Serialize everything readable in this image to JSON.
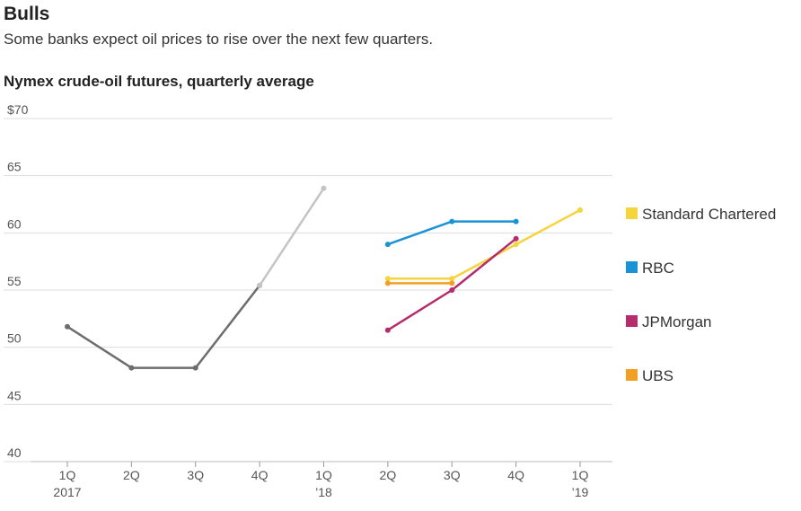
{
  "header": {
    "title": "Bulls",
    "subtitle": "Some banks expect oil prices to rise over the next few quarters."
  },
  "colors": {
    "actual": "#6d6d6d",
    "actual_recent": "#c4c4c4",
    "standard_chartered": "#f5d43c",
    "rbc": "#1a93d6",
    "jpmorgan": "#b52b6c",
    "ubs": "#f2a025",
    "gridline": "#dddddd"
  },
  "chart_data": {
    "type": "line",
    "title": "Nymex crude-oil futures, quarterly average",
    "ylim": [
      40,
      70
    ],
    "y_ticks": [
      {
        "value": 70,
        "label": "$70"
      },
      {
        "value": 65,
        "label": "65"
      },
      {
        "value": 60,
        "label": "60"
      },
      {
        "value": 55,
        "label": "55"
      },
      {
        "value": 50,
        "label": "50"
      },
      {
        "value": 45,
        "label": "45"
      },
      {
        "value": 40,
        "label": "40"
      }
    ],
    "categories": [
      "1Q 2017",
      "2Q",
      "3Q",
      "4Q",
      "1Q '18",
      "2Q",
      "3Q",
      "4Q",
      "1Q '19"
    ],
    "x_ticks": [
      {
        "line1": "1Q",
        "line2": "2017"
      },
      {
        "line1": "2Q",
        "line2": ""
      },
      {
        "line1": "3Q",
        "line2": ""
      },
      {
        "line1": "4Q",
        "line2": ""
      },
      {
        "line1": "1Q",
        "line2": "’18"
      },
      {
        "line1": "2Q",
        "line2": ""
      },
      {
        "line1": "3Q",
        "line2": ""
      },
      {
        "line1": "4Q",
        "line2": ""
      },
      {
        "line1": "1Q",
        "line2": "’19"
      }
    ],
    "grid": true,
    "legend_position": "right",
    "series": [
      {
        "key": "actual",
        "color_key": "actual",
        "x": [
          0,
          1,
          2,
          3
        ],
        "values": [
          51.8,
          48.2,
          48.2,
          55.4
        ]
      },
      {
        "key": "actual_recent",
        "color_key": "actual_recent",
        "x": [
          3,
          4
        ],
        "values": [
          55.4,
          63.9
        ]
      },
      {
        "key": "standard_chartered",
        "name": "Standard Chartered",
        "color_key": "standard_chartered",
        "x": [
          5,
          6,
          7,
          8
        ],
        "values": [
          56.0,
          56.0,
          59.0,
          62.0
        ]
      },
      {
        "key": "rbc",
        "name": "RBC",
        "color_key": "rbc",
        "x": [
          5,
          6,
          7
        ],
        "values": [
          59.0,
          61.0,
          61.0
        ]
      },
      {
        "key": "jpmorgan",
        "name": "JPMorgan",
        "color_key": "jpmorgan",
        "x": [
          5,
          6,
          7
        ],
        "values": [
          51.5,
          55.0,
          59.5
        ]
      },
      {
        "key": "ubs",
        "name": "UBS",
        "color_key": "ubs",
        "x": [
          5,
          6
        ],
        "values": [
          55.6,
          55.6
        ]
      }
    ],
    "legend": [
      {
        "label": "Standard Chartered",
        "color_key": "standard_chartered"
      },
      {
        "label": "RBC",
        "color_key": "rbc"
      },
      {
        "label": "JPMorgan",
        "color_key": "jpmorgan"
      },
      {
        "label": "UBS",
        "color_key": "ubs"
      }
    ]
  }
}
